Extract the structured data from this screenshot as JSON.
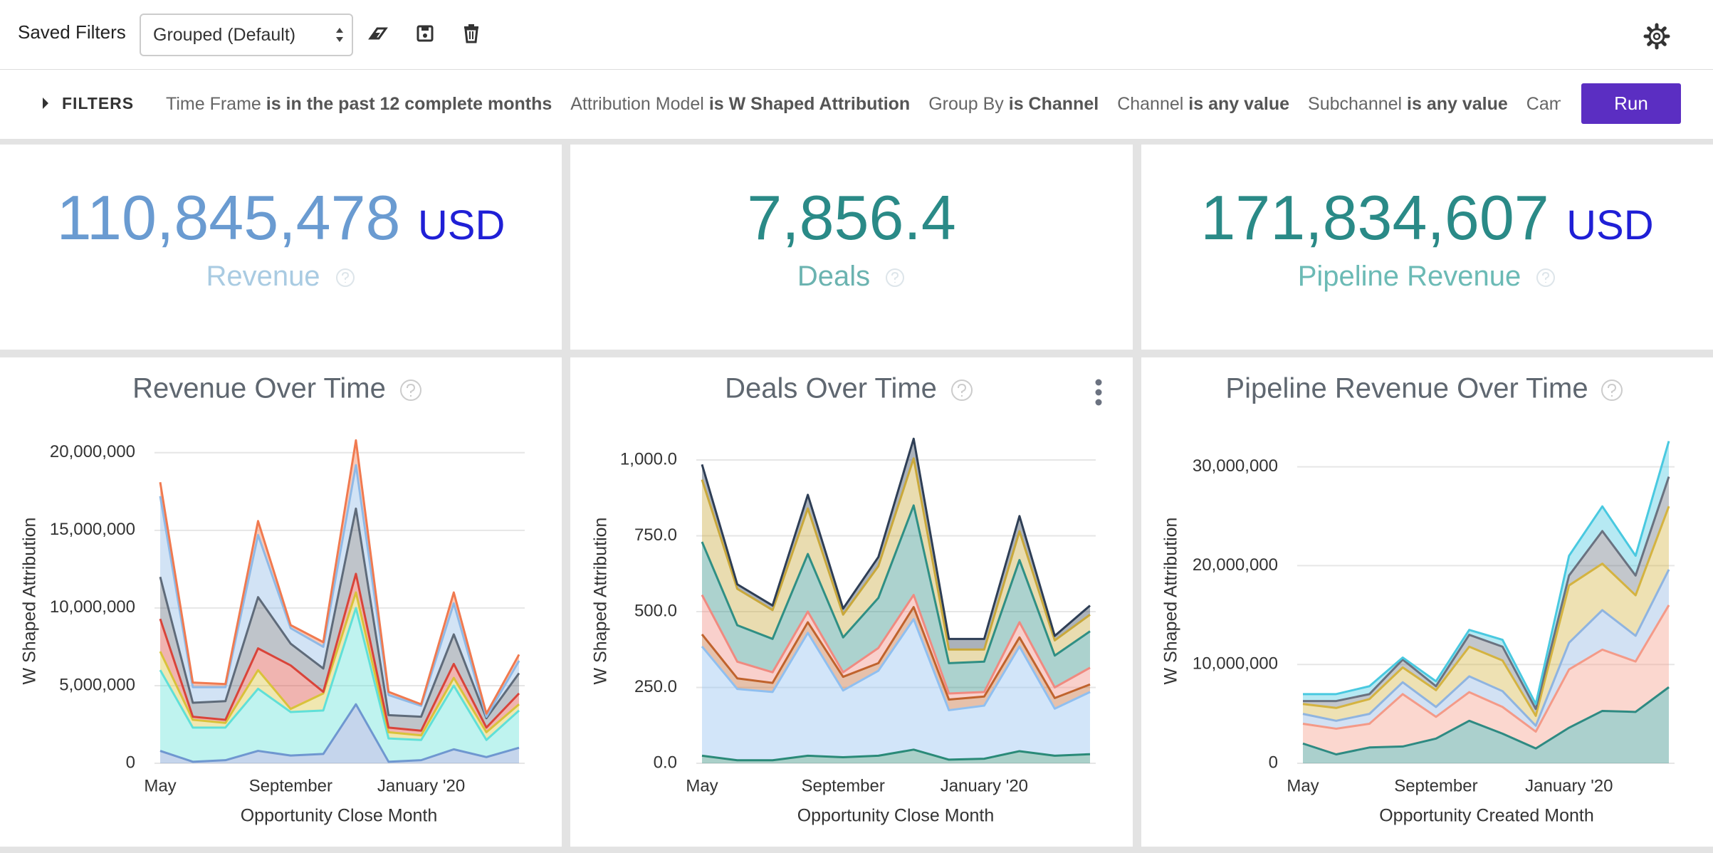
{
  "toolbar": {
    "saved_filters_label": "Saved Filters",
    "selected_filter": "Grouped (Default)"
  },
  "filters": {
    "toggle": "FILTERS",
    "run": "Run",
    "items": [
      {
        "field": "Time Frame",
        "condition": "is in the past 12 complete months"
      },
      {
        "field": "Attribution Model",
        "condition": "is W Shaped Attribution"
      },
      {
        "field": "Group By",
        "condition": "is Channel"
      },
      {
        "field": "Channel",
        "condition": "is any value"
      },
      {
        "field": "Subchannel",
        "condition": "is any value"
      },
      {
        "field": "Cam",
        "condition": ""
      }
    ]
  },
  "kpis": [
    {
      "value": "110,845,478",
      "unit": "USD",
      "label": "Revenue"
    },
    {
      "value": "7,856.4",
      "label": "Deals"
    },
    {
      "value": "171,834,607",
      "unit": "USD",
      "label": "Pipeline Revenue"
    }
  ],
  "chart_data": [
    {
      "type": "area",
      "stacked": true,
      "title": "Revenue Over Time",
      "x_label": "Opportunity Close Month",
      "y_label": "W Shaped Attribution",
      "categories": [
        "May",
        null,
        null,
        null,
        "September",
        null,
        null,
        null,
        "January '20",
        null,
        null,
        null
      ],
      "ylim": [
        0,
        21000000
      ],
      "yticks": [
        0,
        {
          "value": 5000000,
          "label": "5,000,000"
        },
        {
          "value": 10000000,
          "label": "10,000,000"
        },
        {
          "value": 15000000,
          "label": "15,000,000"
        },
        {
          "value": 20000000,
          "label": "20,000,000"
        }
      ],
      "grid": true,
      "series": [
        {
          "color": "#6f97d0",
          "values": [
            800000,
            100000,
            200000,
            800000,
            500000,
            600000,
            3800000,
            100000,
            200000,
            900000,
            400000,
            1000000
          ]
        },
        {
          "color": "#5fe0d8",
          "values": [
            5200000,
            2200000,
            2100000,
            4000000,
            2800000,
            2800000,
            6200000,
            1500000,
            1300000,
            4100000,
            1100000,
            2400000
          ]
        },
        {
          "color": "#d9c23a",
          "values": [
            1200000,
            500000,
            300000,
            1200000,
            200000,
            1100000,
            1000000,
            400000,
            300000,
            500000,
            500000,
            400000
          ]
        },
        {
          "color": "#d9443a",
          "values": [
            2100000,
            200000,
            200000,
            1400000,
            2800000,
            100000,
            1200000,
            300000,
            300000,
            900000,
            300000,
            700000
          ]
        },
        {
          "color": "#5f6b7a",
          "values": [
            2700000,
            900000,
            1200000,
            3300000,
            1400000,
            1500000,
            4200000,
            800000,
            900000,
            1900000,
            600000,
            1300000
          ]
        },
        {
          "color": "#8fb9e6",
          "values": [
            5200000,
            1000000,
            900000,
            4000000,
            1000000,
            1400000,
            2800000,
            1300000,
            700000,
            2000000,
            100000,
            800000
          ]
        },
        {
          "color": "#f07a50",
          "values": [
            900000,
            300000,
            200000,
            900000,
            200000,
            300000,
            1600000,
            200000,
            100000,
            700000,
            200000,
            400000
          ]
        }
      ]
    },
    {
      "type": "area",
      "stacked": true,
      "title": "Deals Over Time",
      "x_label": "Opportunity Close Month",
      "y_label": "W Shaped Attribution",
      "categories": [
        "May",
        null,
        null,
        null,
        "September",
        null,
        null,
        null,
        "January '20",
        null,
        null,
        null
      ],
      "ylim": [
        0,
        1075
      ],
      "yticks": [
        {
          "value": 0,
          "label": "0.0"
        },
        {
          "value": 250,
          "label": "250.0"
        },
        {
          "value": 500,
          "label": "500.0"
        },
        {
          "value": 750,
          "label": "750.0"
        },
        {
          "value": 1000,
          "label": "1,000.0"
        }
      ],
      "grid": true,
      "series": [
        {
          "color": "#2a8a78",
          "values": [
            25,
            10,
            10,
            25,
            20,
            25,
            45,
            12,
            15,
            40,
            25,
            30
          ]
        },
        {
          "color": "#8fbff0",
          "values": [
            360,
            235,
            225,
            405,
            220,
            280,
            430,
            163,
            175,
            345,
            155,
            205
          ]
        },
        {
          "color": "#c0632d",
          "values": [
            40,
            35,
            30,
            35,
            45,
            25,
            40,
            35,
            30,
            30,
            35,
            25
          ]
        },
        {
          "color": "#f08a80",
          "values": [
            130,
            55,
            35,
            35,
            15,
            50,
            40,
            20,
            15,
            50,
            35,
            55
          ]
        },
        {
          "color": "#2f8f84",
          "values": [
            175,
            120,
            110,
            190,
            115,
            165,
            295,
            100,
            100,
            205,
            105,
            120
          ]
        },
        {
          "color": "#c9a83a",
          "values": [
            205,
            120,
            95,
            150,
            75,
            105,
            155,
            45,
            40,
            95,
            50,
            55
          ]
        },
        {
          "color": "#2e3e55",
          "values": [
            50,
            15,
            15,
            45,
            20,
            30,
            65,
            35,
            35,
            50,
            15,
            30
          ]
        }
      ]
    },
    {
      "type": "area",
      "stacked": true,
      "title": "Pipeline Revenue Over Time",
      "x_label": "Opportunity Created Month",
      "y_label": "W Shaped Attribution",
      "categories": [
        "May",
        null,
        null,
        null,
        "September",
        null,
        null,
        null,
        "January '20",
        null,
        null,
        null
      ],
      "ylim": [
        0,
        33000000
      ],
      "yticks": [
        0,
        {
          "value": 10000000,
          "label": "10,000,000"
        },
        {
          "value": 20000000,
          "label": "20,000,000"
        },
        {
          "value": 30000000,
          "label": "30,000,000"
        }
      ],
      "grid": true,
      "series": [
        {
          "color": "#2e8a82",
          "values": [
            2000000,
            900000,
            1600000,
            1700000,
            2500000,
            4300000,
            3000000,
            1500000,
            3600000,
            5300000,
            5200000,
            7700000
          ]
        },
        {
          "color": "#f49a88",
          "values": [
            2000000,
            2600000,
            2400000,
            5300000,
            2200000,
            2900000,
            2700000,
            1700000,
            5900000,
            6200000,
            5100000,
            8300000
          ]
        },
        {
          "color": "#8fb4e0",
          "values": [
            1000000,
            800000,
            1000000,
            1200000,
            1000000,
            1600000,
            1600000,
            600000,
            2700000,
            4000000,
            2600000,
            3600000
          ]
        },
        {
          "color": "#d4b340",
          "values": [
            1000000,
            1300000,
            1500000,
            1500000,
            1700000,
            3000000,
            3100000,
            1000000,
            5800000,
            4700000,
            4100000,
            6400000
          ]
        },
        {
          "color": "#6a7280",
          "values": [
            300000,
            700000,
            500000,
            800000,
            400000,
            1200000,
            1400000,
            700000,
            1000000,
            3300000,
            2000000,
            3000000
          ]
        },
        {
          "color": "#49c9e0",
          "values": [
            700000,
            700000,
            800000,
            200000,
            500000,
            500000,
            700000,
            500000,
            2000000,
            2500000,
            2000000,
            3600000
          ]
        }
      ]
    }
  ]
}
